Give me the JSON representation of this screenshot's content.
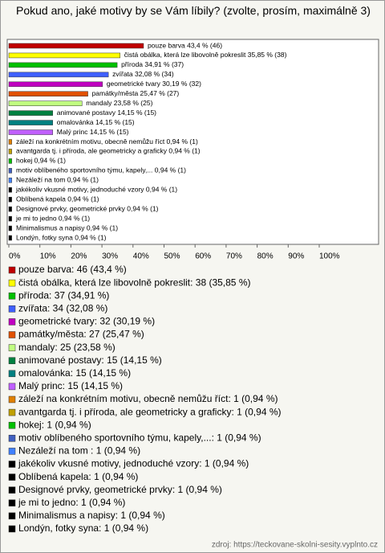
{
  "chart_data": {
    "type": "barh",
    "title": "Pokud ano, jaké motivy by se Vám líbily? (zvolte, prosím, maximálně 3)",
    "categories": [
      "pouze barva",
      "čistá obálka, která lze libovolně pokreslit",
      "příroda",
      "zvířata",
      "geometrické tvary",
      "památky/města",
      "mandaly",
      "animované postavy",
      "omalovánka",
      "Malý princ",
      "záleží na konkrétním motivu, obecně nemůžu říct",
      "avantgarda tj. i příroda, ale geometricky a graficky",
      "hokej",
      "motiv oblíbeného sportovního týmu, kapely,...",
      "Nezáleží na tom ",
      "jakékoliv vkusné motivy, jednoduché vzory",
      "Oblíbená kapela",
      "Designové prvky, geometrické prvky",
      "je mi to jedno",
      "Minimalismus a napisy",
      "Londýn, fotky syna"
    ],
    "values": [
      43.4,
      35.85,
      34.91,
      32.08,
      30.19,
      25.47,
      23.58,
      14.15,
      14.15,
      14.15,
      0.94,
      0.94,
      0.94,
      0.94,
      0.94,
      0.94,
      0.94,
      0.94,
      0.94,
      0.94,
      0.94
    ],
    "value_labels": [
      "pouze barva 43,4 % (46)",
      "čistá obálka, která lze libovolně pokreslit 35,85 % (38)",
      "příroda 34,91 % (37)",
      "zvířata 32,08 % (34)",
      "geometrické tvary 30,19 % (32)",
      "památky/města 25,47 % (27)",
      "mandaly 23,58 % (25)",
      "animované postavy 14,15 % (15)",
      "omalovánka 14,15 % (15)",
      "Malý princ 14,15 % (15)",
      "záleží na konkrétním motivu, obecně nemůžu říct 0,94 % (1)",
      "avantgarda tj. i příroda, ale geometricky a graficky 0,94 % (1)",
      "hokej 0,94 % (1)",
      "motiv oblíbeného sportovního týmu, kapely,... 0,94 % (1)",
      "Nezáleží na tom  0,94 % (1)",
      "jakékoliv vkusné motivy, jednoduché vzory 0,94 % (1)",
      "Oblíbená kapela 0,94 % (1)",
      "Designové prvky, geometrické prvky 0,94 % (1)",
      "je mi to jedno 0,94 % (1)",
      "Minimalismus a napisy 0,94 % (1)",
      "Londýn, fotky syna 0,94 % (1)"
    ],
    "legend": [
      "pouze barva: 46 (43,4 %)",
      "čistá obálka, která lze libovolně pokreslit: 38 (35,85 %)",
      "příroda: 37 (34,91 %)",
      "zvířata: 34 (32,08 %)",
      "geometrické tvary: 32 (30,19 %)",
      "památky/města: 27 (25,47 %)",
      "mandaly: 25 (23,58 %)",
      "animované postavy: 15 (14,15 %)",
      "omalovánka: 15 (14,15 %)",
      "Malý princ: 15 (14,15 %)",
      "záleží na konkrétním motivu, obecně nemůžu říct: 1 (0,94 %)",
      "avantgarda tj. i příroda, ale geometricky a graficky: 1 (0,94 %)",
      "hokej: 1 (0,94 %)",
      "motiv oblíbeného sportovního týmu, kapely,...: 1 (0,94 %)",
      "Nezáleží na tom : 1 (0,94 %)",
      "jakékoliv vkusné motivy, jednoduché vzory: 1 (0,94 %)",
      "Oblíbená kapela: 1 (0,94 %)",
      "Designové prvky, geometrické prvky: 1 (0,94 %)",
      "je mi to jedno: 1 (0,94 %)",
      "Minimalismus a napisy: 1 (0,94 %)",
      "Londýn, fotky syna: 1 (0,94 %)"
    ],
    "colors": [
      "#c00000",
      "#ffff00",
      "#00c000",
      "#4060ff",
      "#c000c0",
      "#e05000",
      "#c0ff80",
      "#008040",
      "#008080",
      "#c060ff",
      "#e08000",
      "#c0a000",
      "#00c000",
      "#4060c0",
      "#4080ff",
      "#000000",
      "#000000",
      "#000000",
      "#000000",
      "#000000",
      "#000000"
    ],
    "xlim": [
      0,
      100
    ],
    "xticks": [
      {
        "value": 0,
        "label": "0%"
      },
      {
        "value": 10,
        "label": "10%"
      },
      {
        "value": 20,
        "label": "20%"
      },
      {
        "value": 30,
        "label": "30%"
      },
      {
        "value": 40,
        "label": "40%"
      },
      {
        "value": 50,
        "label": "50%"
      },
      {
        "value": 60,
        "label": "60%"
      },
      {
        "value": 70,
        "label": "70%"
      },
      {
        "value": 80,
        "label": "80%"
      },
      {
        "value": 90,
        "label": "90%"
      },
      {
        "value": 100,
        "label": "100%"
      }
    ],
    "source": "zdroj: https://teckovane-skolni-sesity.vyplnto.cz"
  }
}
